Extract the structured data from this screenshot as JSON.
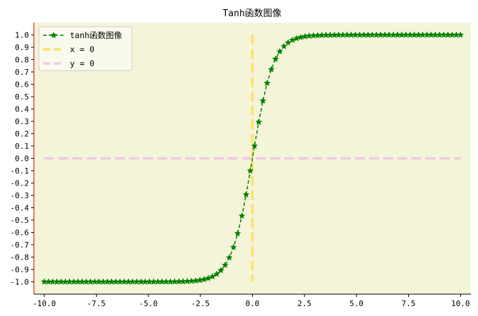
{
  "chart_data": {
    "type": "line",
    "title": "Tanh函数图像",
    "xlabel": "",
    "ylabel": "",
    "xlim": [
      -10.5,
      10.5
    ],
    "ylim": [
      -1.1,
      1.1
    ],
    "x_ticks": [
      -10.0,
      -7.5,
      -5.0,
      -2.5,
      0.0,
      2.5,
      5.0,
      7.5,
      10.0
    ],
    "x_tick_labels": [
      "-10.0",
      "-7.5",
      "-5.0",
      "-2.5",
      "0.0",
      "2.5",
      "5.0",
      "7.5",
      "10.0"
    ],
    "y_ticks": [
      -1.0,
      -0.9,
      -0.8,
      -0.7,
      -0.6,
      -0.5,
      -0.4,
      -0.3,
      -0.2,
      -0.1,
      0.0,
      0.1,
      0.2,
      0.3,
      0.4,
      0.5,
      0.6,
      0.7,
      0.8,
      0.9,
      1.0
    ],
    "y_tick_labels": [
      "-1.0",
      "-0.9",
      "-0.8",
      "-0.7",
      "-0.6",
      "-0.5",
      "-0.4",
      "-0.3",
      "-0.2",
      "-0.1",
      "0.0",
      "0.1",
      "0.2",
      "0.3",
      "0.4",
      "0.5",
      "0.6",
      "0.7",
      "0.8",
      "0.9",
      "1.0"
    ],
    "grid": false,
    "legend_position": "top-left",
    "plot_background": "#f4f4d9",
    "spine_color": "#cc0000",
    "series": [
      {
        "name": "tanh函数图像",
        "kind": "tanh-curve",
        "color": "#008000",
        "line_style": "dashed",
        "marker": "star",
        "x_range": [
          -10,
          10
        ],
        "point_count": 100
      },
      {
        "name": "x = 0",
        "kind": "vertical-line",
        "color": "#ffe066",
        "line_style": "dashed",
        "x": 0,
        "y_range": [
          -1.0,
          1.0
        ]
      },
      {
        "name": "y = 0",
        "kind": "horizontal-line",
        "color": "#f0c8e0",
        "line_style": "dashed",
        "y": 0,
        "x_range": [
          -10,
          10
        ]
      }
    ]
  }
}
